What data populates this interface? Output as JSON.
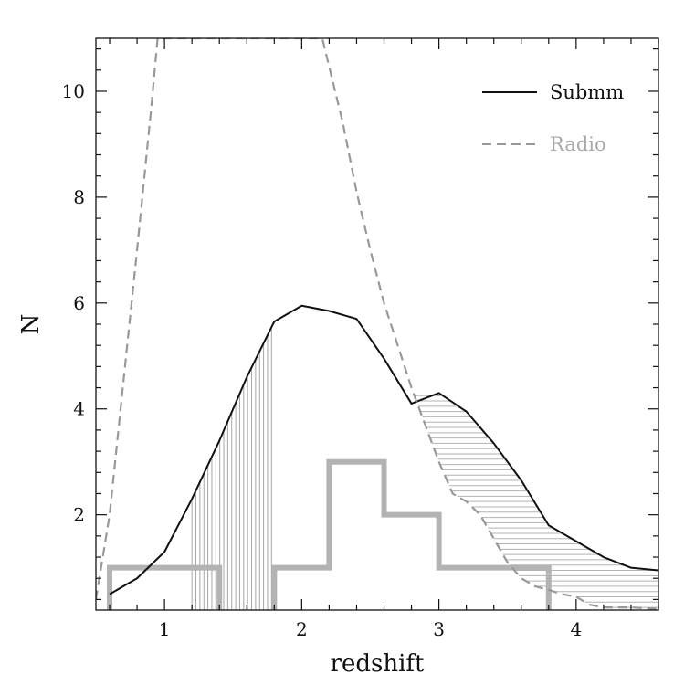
{
  "chart_data": {
    "type": "line",
    "xlabel": "redshift",
    "ylabel": "N",
    "xlim": [
      0.5,
      4.6
    ],
    "ylim": [
      0.2,
      11.0
    ],
    "x_ticks_major": [
      1,
      2,
      3,
      4
    ],
    "x_tick_labels": [
      "1",
      "2",
      "3",
      "4"
    ],
    "y_ticks_major": [
      2,
      4,
      6,
      8,
      10
    ],
    "y_tick_labels": [
      "2",
      "4",
      "6",
      "8",
      "10"
    ],
    "x_minor_step": 0.2,
    "y_minor_step": 0.4,
    "legend": {
      "position": "top-right",
      "entries": [
        {
          "label": "Submm",
          "style": "solid",
          "color": "#111111"
        },
        {
          "label": "Radio",
          "style": "dashed",
          "color": "#999999"
        }
      ]
    },
    "series": [
      {
        "name": "Submm",
        "style": "solid",
        "color": "#111111",
        "x": [
          0.6,
          0.8,
          1.0,
          1.2,
          1.4,
          1.6,
          1.8,
          2.0,
          2.2,
          2.4,
          2.6,
          2.8,
          3.0,
          3.2,
          3.4,
          3.6,
          3.8,
          4.0,
          4.2,
          4.4,
          4.6
        ],
        "y": [
          0.5,
          0.8,
          1.3,
          2.3,
          3.4,
          4.6,
          5.65,
          5.95,
          5.85,
          5.7,
          4.95,
          4.1,
          4.3,
          3.95,
          3.35,
          2.65,
          1.8,
          1.5,
          1.2,
          1.0,
          0.95
        ]
      },
      {
        "name": "Radio",
        "style": "dashed",
        "color": "#999999",
        "x": [
          0.5,
          0.6,
          0.7,
          0.8,
          0.9,
          0.95,
          2.15,
          2.3,
          2.4,
          2.5,
          2.6,
          2.7,
          2.8,
          2.9,
          3.0,
          3.1,
          3.2,
          3.3,
          3.4,
          3.5,
          3.6,
          3.7,
          3.8,
          3.9,
          4.0,
          4.1,
          4.2,
          4.4,
          4.6
        ],
        "y": [
          0.4,
          2.0,
          4.5,
          7.0,
          9.6,
          11.0,
          11.0,
          9.4,
          8.1,
          7.0,
          6.0,
          5.2,
          4.4,
          3.7,
          3.0,
          2.4,
          2.25,
          2.0,
          1.55,
          1.1,
          0.8,
          0.65,
          0.58,
          0.5,
          0.45,
          0.3,
          0.25,
          0.25,
          0.22
        ]
      }
    ],
    "histogram": {
      "color": "#b3b3b3",
      "bins": [
        {
          "x0": 0.6,
          "x1": 1.4,
          "value": 1
        },
        {
          "x0": 1.4,
          "x1": 1.8,
          "value": 0
        },
        {
          "x0": 1.8,
          "x1": 2.2,
          "value": 1
        },
        {
          "x0": 2.2,
          "x1": 2.6,
          "value": 3
        },
        {
          "x0": 2.6,
          "x1": 3.0,
          "value": 2
        },
        {
          "x0": 3.0,
          "x1": 3.8,
          "value": 1
        }
      ]
    },
    "shaded_regions": [
      {
        "type": "vertical_hatch",
        "x_range": [
          1.2,
          1.78
        ],
        "bottom": 0.2,
        "top_series": "Submm"
      },
      {
        "type": "horizontal_hatch",
        "x_range": [
          2.67,
          4.6
        ],
        "bottom_series": "Radio",
        "top_series": "Submm"
      }
    ]
  }
}
